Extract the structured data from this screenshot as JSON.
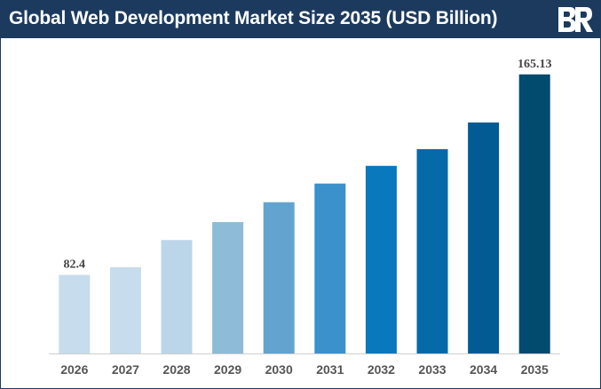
{
  "header": {
    "title": "Global Web Development Market Size 2035 (USD Billion)",
    "logo_icon": "brand-logo-icon",
    "background_color": "#1c3a5e"
  },
  "chart_data": {
    "type": "bar",
    "title": "Global Web Development Market Size 2035 (USD Billion)",
    "categories": [
      "2026",
      "2027",
      "2028",
      "2029",
      "2030",
      "2031",
      "2032",
      "2033",
      "2034",
      "2035"
    ],
    "values": [
      82.4,
      85.6,
      96.8,
      104.2,
      112.4,
      120.1,
      127.4,
      134.3,
      145.3,
      165.13
    ],
    "data_labels": [
      "82.4",
      "",
      "",
      "",
      "",
      "",
      "",
      "",
      "",
      "165.13"
    ],
    "colors": [
      "#c7dcec",
      "#c7dcec",
      "#bcd6e9",
      "#8dbbd8",
      "#62a4cf",
      "#3a91cc",
      "#0a78bd",
      "#066aa8",
      "#035b93",
      "#024a6e"
    ],
    "xlabel": "",
    "ylabel": "",
    "ylim": [
      50,
      172
    ],
    "grid": false,
    "legend": "none"
  }
}
